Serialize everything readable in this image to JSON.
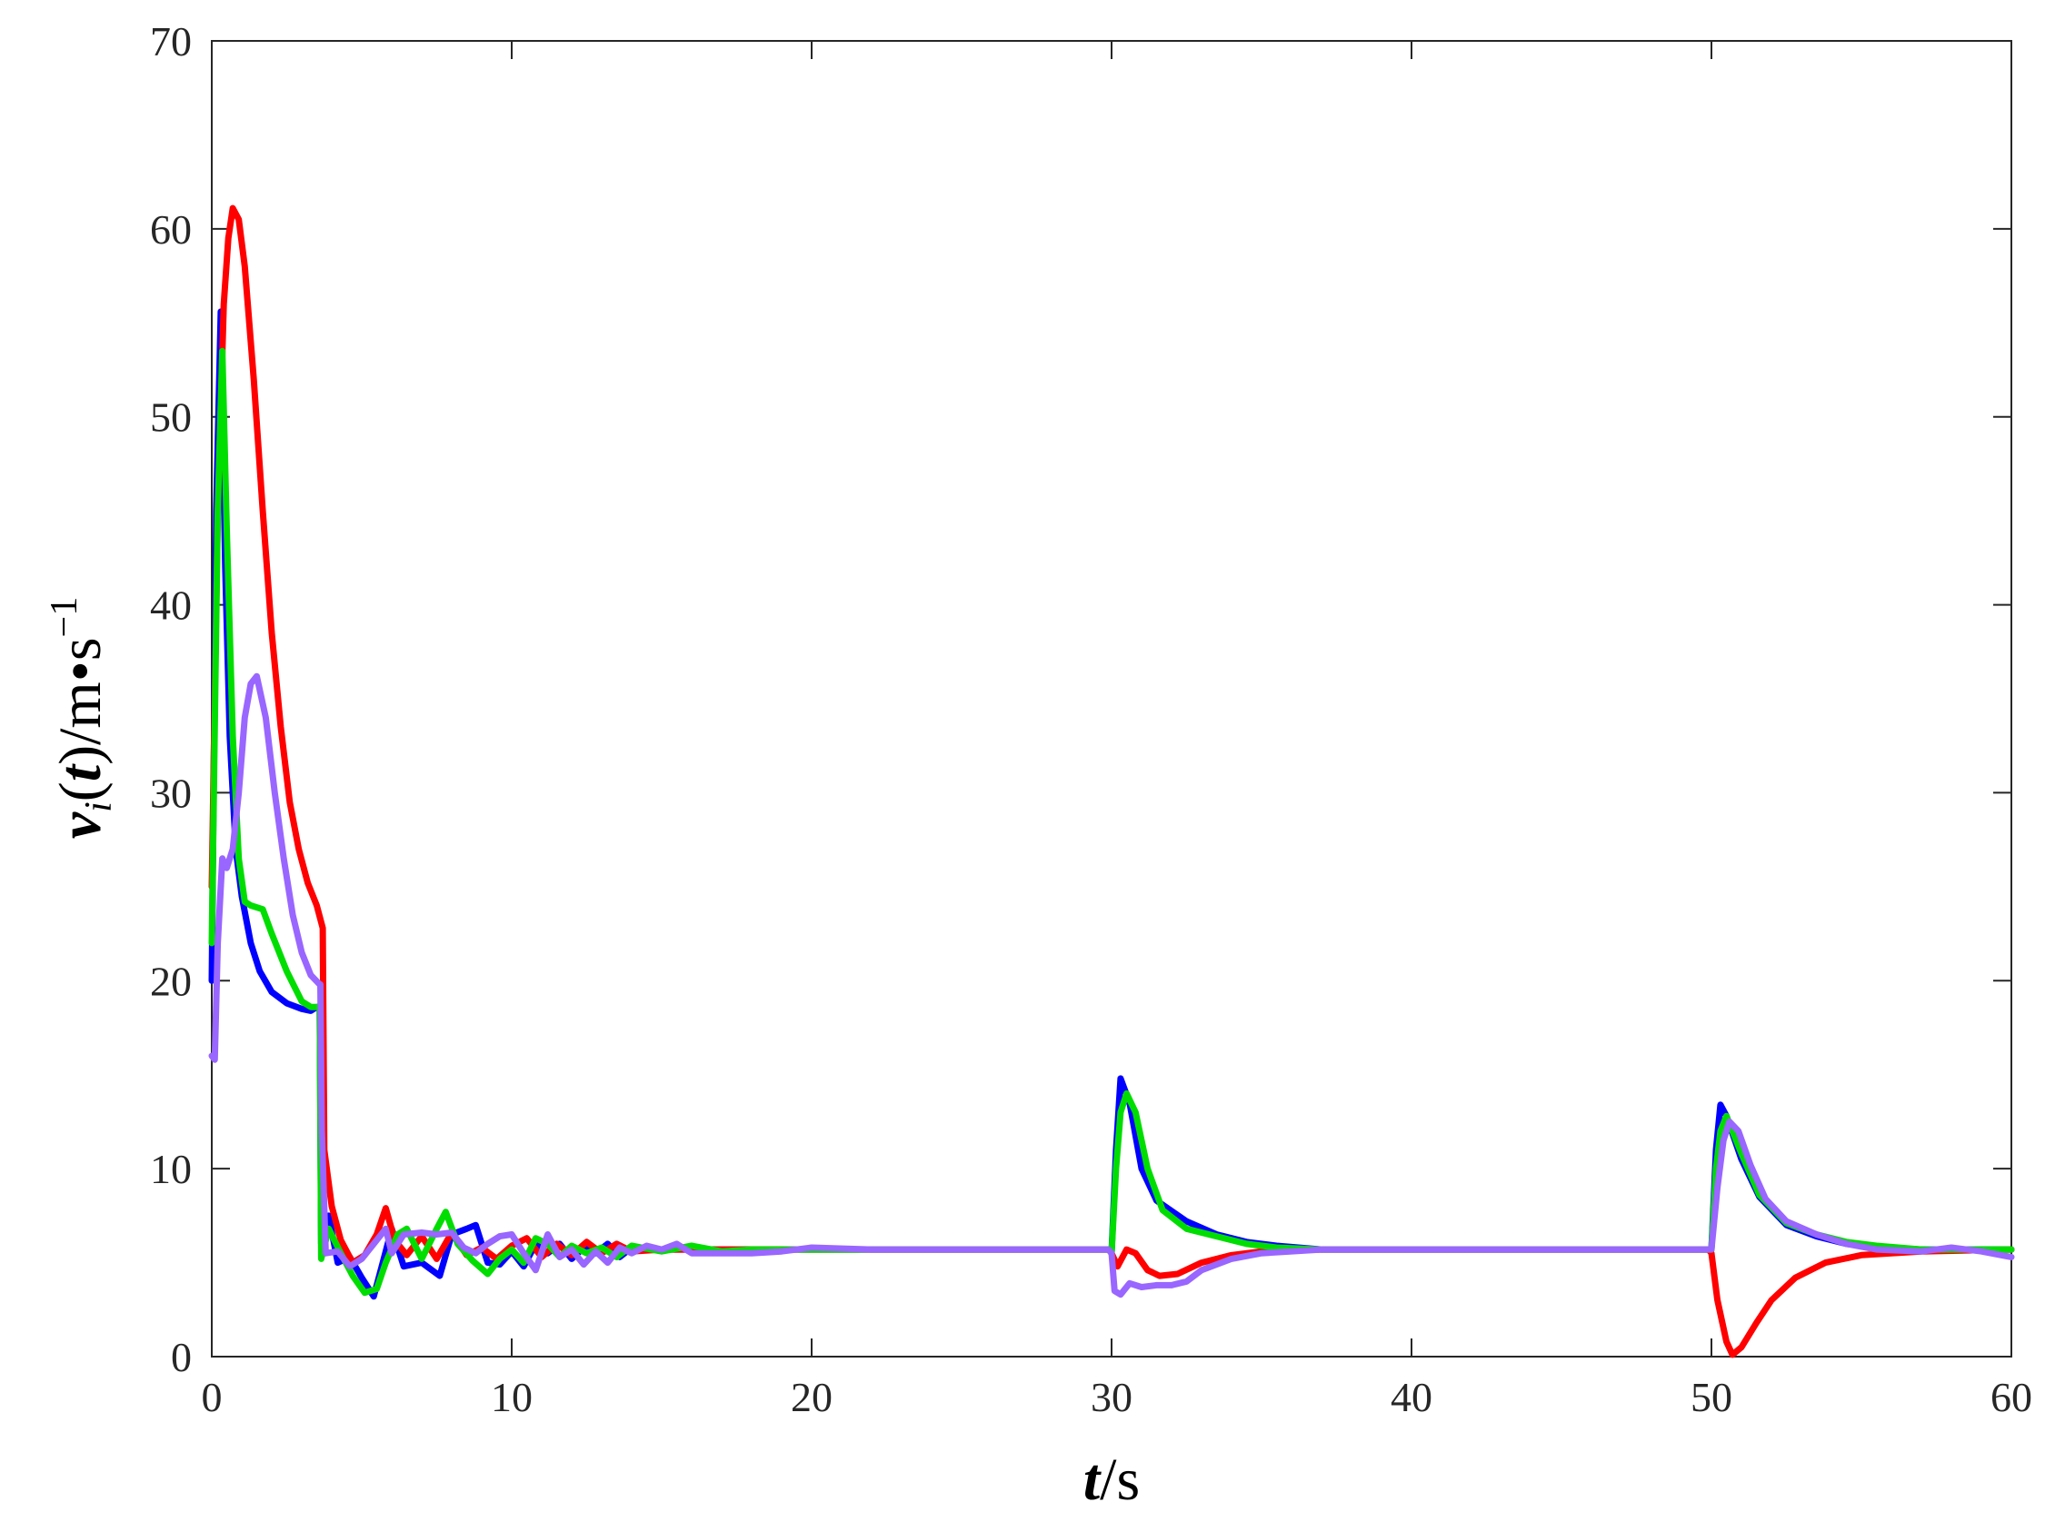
{
  "chart_data": {
    "type": "line",
    "xlabel": {
      "var": "t",
      "sep": "/",
      "unit": "s"
    },
    "ylabel": {
      "var": "v",
      "sub": "i",
      "arg": "t",
      "sep": "/",
      "unit": "m•s",
      "exp": "−1"
    },
    "xlim": [
      0,
      60
    ],
    "ylim": [
      0,
      70
    ],
    "x_ticks": [
      "0",
      "10",
      "20",
      "30",
      "40",
      "50",
      "60"
    ],
    "y_ticks": [
      "0",
      "10",
      "20",
      "30",
      "40",
      "50",
      "60",
      "70"
    ],
    "grid": false,
    "legend": "none",
    "series": [
      {
        "color": "#0000ff",
        "points": [
          [
            0,
            20
          ],
          [
            0.15,
            45
          ],
          [
            0.3,
            55.6
          ],
          [
            0.45,
            42
          ],
          [
            0.6,
            33
          ],
          [
            0.8,
            27
          ],
          [
            1.0,
            24.5
          ],
          [
            1.3,
            22
          ],
          [
            1.6,
            20.5
          ],
          [
            2.0,
            19.4
          ],
          [
            2.5,
            18.8
          ],
          [
            3.0,
            18.5
          ],
          [
            3.3,
            18.4
          ],
          [
            3.5,
            18.6
          ],
          [
            3.6,
            18.6
          ],
          [
            3.65,
            6
          ],
          [
            3.9,
            7.5
          ],
          [
            4.2,
            5
          ],
          [
            4.6,
            5.3
          ],
          [
            5.0,
            4.2
          ],
          [
            5.4,
            3.2
          ],
          [
            5.7,
            5
          ],
          [
            6.0,
            6.8
          ],
          [
            6.4,
            4.8
          ],
          [
            7.0,
            5
          ],
          [
            7.6,
            4.3
          ],
          [
            8.0,
            6.5
          ],
          [
            8.5,
            6.8
          ],
          [
            8.8,
            7
          ],
          [
            9.2,
            5
          ],
          [
            9.6,
            4.9
          ],
          [
            10.0,
            5.6
          ],
          [
            10.4,
            4.8
          ],
          [
            10.8,
            6
          ],
          [
            11.2,
            5.5
          ],
          [
            11.6,
            6
          ],
          [
            12.0,
            5.2
          ],
          [
            12.4,
            5.8
          ],
          [
            12.8,
            5.5
          ],
          [
            13.2,
            6
          ],
          [
            13.6,
            5.3
          ],
          [
            14.0,
            5.8
          ],
          [
            15,
            5.7
          ],
          [
            17,
            5.7
          ],
          [
            20,
            5.7
          ],
          [
            25,
            5.7
          ],
          [
            29.9,
            5.7
          ],
          [
            30.0,
            5.5
          ],
          [
            30.15,
            11
          ],
          [
            30.3,
            14.8
          ],
          [
            30.6,
            13.5
          ],
          [
            31.0,
            10
          ],
          [
            31.5,
            8.3
          ],
          [
            32.5,
            7.2
          ],
          [
            33.5,
            6.5
          ],
          [
            34.5,
            6.1
          ],
          [
            35.5,
            5.9
          ],
          [
            37,
            5.7
          ],
          [
            40,
            5.7
          ],
          [
            45,
            5.7
          ],
          [
            49.9,
            5.7
          ],
          [
            50.0,
            5.7
          ],
          [
            50.15,
            11
          ],
          [
            50.3,
            13.4
          ],
          [
            50.5,
            12.8
          ],
          [
            51.0,
            10.5
          ],
          [
            51.6,
            8.5
          ],
          [
            52.5,
            7
          ],
          [
            53.5,
            6.4
          ],
          [
            54.5,
            6
          ],
          [
            55.5,
            5.8
          ],
          [
            57,
            5.7
          ],
          [
            60,
            5.7
          ]
        ]
      },
      {
        "color": "#ff0000",
        "points": [
          [
            0,
            25
          ],
          [
            0.2,
            45
          ],
          [
            0.4,
            56
          ],
          [
            0.55,
            59.5
          ],
          [
            0.7,
            61.1
          ],
          [
            0.9,
            60.5
          ],
          [
            1.1,
            58
          ],
          [
            1.4,
            52
          ],
          [
            1.7,
            45
          ],
          [
            2.0,
            38.5
          ],
          [
            2.3,
            33.5
          ],
          [
            2.6,
            29.5
          ],
          [
            2.9,
            27
          ],
          [
            3.2,
            25.2
          ],
          [
            3.5,
            24
          ],
          [
            3.7,
            22.8
          ],
          [
            3.75,
            11
          ],
          [
            4.0,
            8
          ],
          [
            4.3,
            6.2
          ],
          [
            4.7,
            5
          ],
          [
            5.1,
            5.4
          ],
          [
            5.5,
            6.5
          ],
          [
            5.8,
            7.9
          ],
          [
            6.1,
            6.2
          ],
          [
            6.5,
            5.4
          ],
          [
            7.0,
            6.4
          ],
          [
            7.5,
            5.2
          ],
          [
            8.0,
            6.6
          ],
          [
            8.5,
            5.4
          ],
          [
            9.0,
            5.8
          ],
          [
            9.5,
            5.2
          ],
          [
            10.0,
            5.9
          ],
          [
            10.5,
            6.3
          ],
          [
            11.0,
            5.3
          ],
          [
            11.5,
            6
          ],
          [
            12.0,
            5.4
          ],
          [
            12.5,
            6.1
          ],
          [
            13.0,
            5.5
          ],
          [
            13.5,
            6
          ],
          [
            14,
            5.6
          ],
          [
            15,
            5.7
          ],
          [
            20,
            5.7
          ],
          [
            25,
            5.7
          ],
          [
            29.9,
            5.7
          ],
          [
            30.0,
            5.5
          ],
          [
            30.2,
            4.8
          ],
          [
            30.5,
            5.7
          ],
          [
            30.8,
            5.5
          ],
          [
            31.2,
            4.6
          ],
          [
            31.6,
            4.3
          ],
          [
            32.2,
            4.4
          ],
          [
            33,
            5
          ],
          [
            34,
            5.4
          ],
          [
            35,
            5.6
          ],
          [
            37,
            5.7
          ],
          [
            40,
            5.7
          ],
          [
            45,
            5.7
          ],
          [
            49.9,
            5.7
          ],
          [
            50.0,
            5.5
          ],
          [
            50.2,
            3
          ],
          [
            50.5,
            0.8
          ],
          [
            50.7,
            0.1
          ],
          [
            51.0,
            0.5
          ],
          [
            51.5,
            1.8
          ],
          [
            52.0,
            3
          ],
          [
            52.8,
            4.2
          ],
          [
            53.8,
            5
          ],
          [
            55,
            5.4
          ],
          [
            57,
            5.6
          ],
          [
            60,
            5.7
          ]
        ]
      },
      {
        "color": "#00dd00",
        "points": [
          [
            0,
            22
          ],
          [
            0.2,
            45
          ],
          [
            0.35,
            53.5
          ],
          [
            0.5,
            44
          ],
          [
            0.7,
            33
          ],
          [
            0.9,
            26.5
          ],
          [
            1.1,
            24.2
          ],
          [
            1.3,
            24
          ],
          [
            1.7,
            23.8
          ],
          [
            2.0,
            22.5
          ],
          [
            2.5,
            20.5
          ],
          [
            3.0,
            18.9
          ],
          [
            3.3,
            18.6
          ],
          [
            3.6,
            18.6
          ],
          [
            3.65,
            5.2
          ],
          [
            3.9,
            6.8
          ],
          [
            4.3,
            5.5
          ],
          [
            4.7,
            4.3
          ],
          [
            5.1,
            3.4
          ],
          [
            5.5,
            3.6
          ],
          [
            5.8,
            5
          ],
          [
            6.2,
            6.5
          ],
          [
            6.5,
            6.8
          ],
          [
            7.0,
            5.2
          ],
          [
            7.5,
            6.8
          ],
          [
            7.8,
            7.7
          ],
          [
            8.2,
            6
          ],
          [
            8.7,
            5.1
          ],
          [
            9.2,
            4.4
          ],
          [
            9.6,
            5.2
          ],
          [
            10.0,
            5.7
          ],
          [
            10.4,
            5
          ],
          [
            10.8,
            6.3
          ],
          [
            11.2,
            6
          ],
          [
            11.6,
            5.3
          ],
          [
            12.0,
            5.9
          ],
          [
            12.5,
            5.5
          ],
          [
            13.0,
            5.8
          ],
          [
            13.5,
            5.3
          ],
          [
            14.0,
            5.9
          ],
          [
            15,
            5.6
          ],
          [
            16,
            5.9
          ],
          [
            17,
            5.6
          ],
          [
            18,
            5.7
          ],
          [
            20,
            5.7
          ],
          [
            25,
            5.7
          ],
          [
            29.9,
            5.7
          ],
          [
            30.0,
            5.5
          ],
          [
            30.15,
            10
          ],
          [
            30.3,
            13
          ],
          [
            30.5,
            14
          ],
          [
            30.8,
            13
          ],
          [
            31.2,
            10
          ],
          [
            31.7,
            7.8
          ],
          [
            32.5,
            6.8
          ],
          [
            33.5,
            6.4
          ],
          [
            34.5,
            6
          ],
          [
            35.5,
            5.8
          ],
          [
            37,
            5.7
          ],
          [
            40,
            5.7
          ],
          [
            45,
            5.7
          ],
          [
            49.9,
            5.7
          ],
          [
            50.0,
            5.7
          ],
          [
            50.15,
            10
          ],
          [
            50.3,
            12
          ],
          [
            50.5,
            12.8
          ],
          [
            51.0,
            10.8
          ],
          [
            51.6,
            8.6
          ],
          [
            52.5,
            7.1
          ],
          [
            53.5,
            6.5
          ],
          [
            54.5,
            6.1
          ],
          [
            55.5,
            5.9
          ],
          [
            57,
            5.7
          ],
          [
            60,
            5.7
          ]
        ]
      },
      {
        "color": "#9966ff",
        "points": [
          [
            0,
            16
          ],
          [
            0.1,
            15.8
          ],
          [
            0.2,
            22
          ],
          [
            0.35,
            26.5
          ],
          [
            0.5,
            26
          ],
          [
            0.7,
            27
          ],
          [
            0.9,
            30
          ],
          [
            1.1,
            34
          ],
          [
            1.3,
            35.8
          ],
          [
            1.5,
            36.2
          ],
          [
            1.8,
            34
          ],
          [
            2.1,
            30
          ],
          [
            2.4,
            26.5
          ],
          [
            2.7,
            23.5
          ],
          [
            3.0,
            21.5
          ],
          [
            3.3,
            20.3
          ],
          [
            3.6,
            19.8
          ],
          [
            3.62,
            19.8
          ],
          [
            3.67,
            12
          ],
          [
            3.8,
            5.5
          ],
          [
            4.2,
            5.6
          ],
          [
            4.6,
            4.8
          ],
          [
            5.0,
            5.2
          ],
          [
            5.4,
            6
          ],
          [
            5.8,
            6.8
          ],
          [
            6.0,
            5.5
          ],
          [
            6.4,
            6.5
          ],
          [
            7.0,
            6.6
          ],
          [
            7.5,
            6.5
          ],
          [
            8.0,
            6.6
          ],
          [
            8.4,
            5.8
          ],
          [
            8.8,
            5.5
          ],
          [
            9.2,
            6
          ],
          [
            9.6,
            6.4
          ],
          [
            10.0,
            6.5
          ],
          [
            10.4,
            5.5
          ],
          [
            10.8,
            4.6
          ],
          [
            11.2,
            6.5
          ],
          [
            11.6,
            5.3
          ],
          [
            12.0,
            5.7
          ],
          [
            12.4,
            4.9
          ],
          [
            12.8,
            5.6
          ],
          [
            13.2,
            5
          ],
          [
            13.6,
            5.8
          ],
          [
            14.0,
            5.5
          ],
          [
            14.5,
            5.9
          ],
          [
            15.0,
            5.7
          ],
          [
            15.5,
            6
          ],
          [
            16,
            5.5
          ],
          [
            17,
            5.5
          ],
          [
            18,
            5.5
          ],
          [
            19,
            5.6
          ],
          [
            20,
            5.8
          ],
          [
            22,
            5.7
          ],
          [
            25,
            5.7
          ],
          [
            29.9,
            5.7
          ],
          [
            30.0,
            5.5
          ],
          [
            30.1,
            3.5
          ],
          [
            30.3,
            3.3
          ],
          [
            30.6,
            3.9
          ],
          [
            31.0,
            3.7
          ],
          [
            31.5,
            3.8
          ],
          [
            32.0,
            3.8
          ],
          [
            32.5,
            4
          ],
          [
            33,
            4.6
          ],
          [
            34,
            5.2
          ],
          [
            35,
            5.5
          ],
          [
            37,
            5.7
          ],
          [
            40,
            5.7
          ],
          [
            45,
            5.7
          ],
          [
            49.9,
            5.7
          ],
          [
            50.0,
            5.7
          ],
          [
            50.2,
            9
          ],
          [
            50.4,
            11.5
          ],
          [
            50.6,
            12.5
          ],
          [
            50.9,
            12
          ],
          [
            51.3,
            10.2
          ],
          [
            51.8,
            8.4
          ],
          [
            52.5,
            7.2
          ],
          [
            53.5,
            6.5
          ],
          [
            54.5,
            6
          ],
          [
            55.5,
            5.7
          ],
          [
            57,
            5.6
          ],
          [
            58,
            5.8
          ],
          [
            59,
            5.6
          ],
          [
            60,
            5.3
          ]
        ]
      }
    ]
  }
}
